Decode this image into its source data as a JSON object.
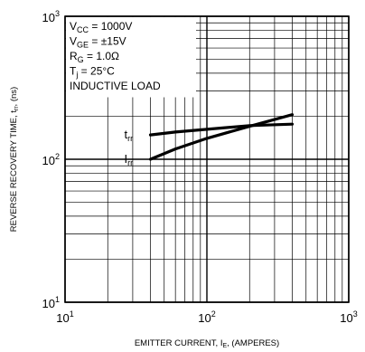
{
  "chart_data": {
    "type": "line",
    "x_scale": "log",
    "y_scale": "log",
    "xlim": [
      10,
      1000
    ],
    "ylim": [
      10,
      1000
    ],
    "xlabel": "EMITTER CURRENT, I_E, (AMPERES)",
    "ylabel": "REVERSE RECOVERY TIME, t_rr, (ns)",
    "x_ticks": [
      {
        "value": 10,
        "mantissa": "10",
        "exp": "1"
      },
      {
        "value": 100,
        "mantissa": "10",
        "exp": "2"
      },
      {
        "value": 1000,
        "mantissa": "10",
        "exp": "3"
      }
    ],
    "y_ticks": [
      {
        "value": 10,
        "mantissa": "10",
        "exp": "1"
      },
      {
        "value": 100,
        "mantissa": "10",
        "exp": "2"
      },
      {
        "value": 1000,
        "mantissa": "10",
        "exp": "3"
      }
    ],
    "grid": true,
    "annotations": [
      {
        "main": "V",
        "sub": "CC",
        "rest": " = 1000V"
      },
      {
        "main": "V",
        "sub": "GE",
        "rest": " = ±15V"
      },
      {
        "main": "R",
        "sub": "G",
        "rest": " = 1.0Ω"
      },
      {
        "main": "T",
        "sub": "j",
        "rest": " = 25°C"
      },
      {
        "main": "INDUCTIVE LOAD",
        "sub": "",
        "rest": ""
      }
    ],
    "series": [
      {
        "name": "t_rr",
        "label_main": "t",
        "label_sub": "rr",
        "x": [
          40,
          60,
          100,
          200,
          400
        ],
        "y": [
          148,
          155,
          162,
          172,
          176
        ]
      },
      {
        "name": "I_rr",
        "label_main": "I",
        "label_sub": "rr",
        "x": [
          40,
          60,
          100,
          200,
          400
        ],
        "y": [
          100,
          118,
          140,
          170,
          205
        ]
      }
    ]
  }
}
